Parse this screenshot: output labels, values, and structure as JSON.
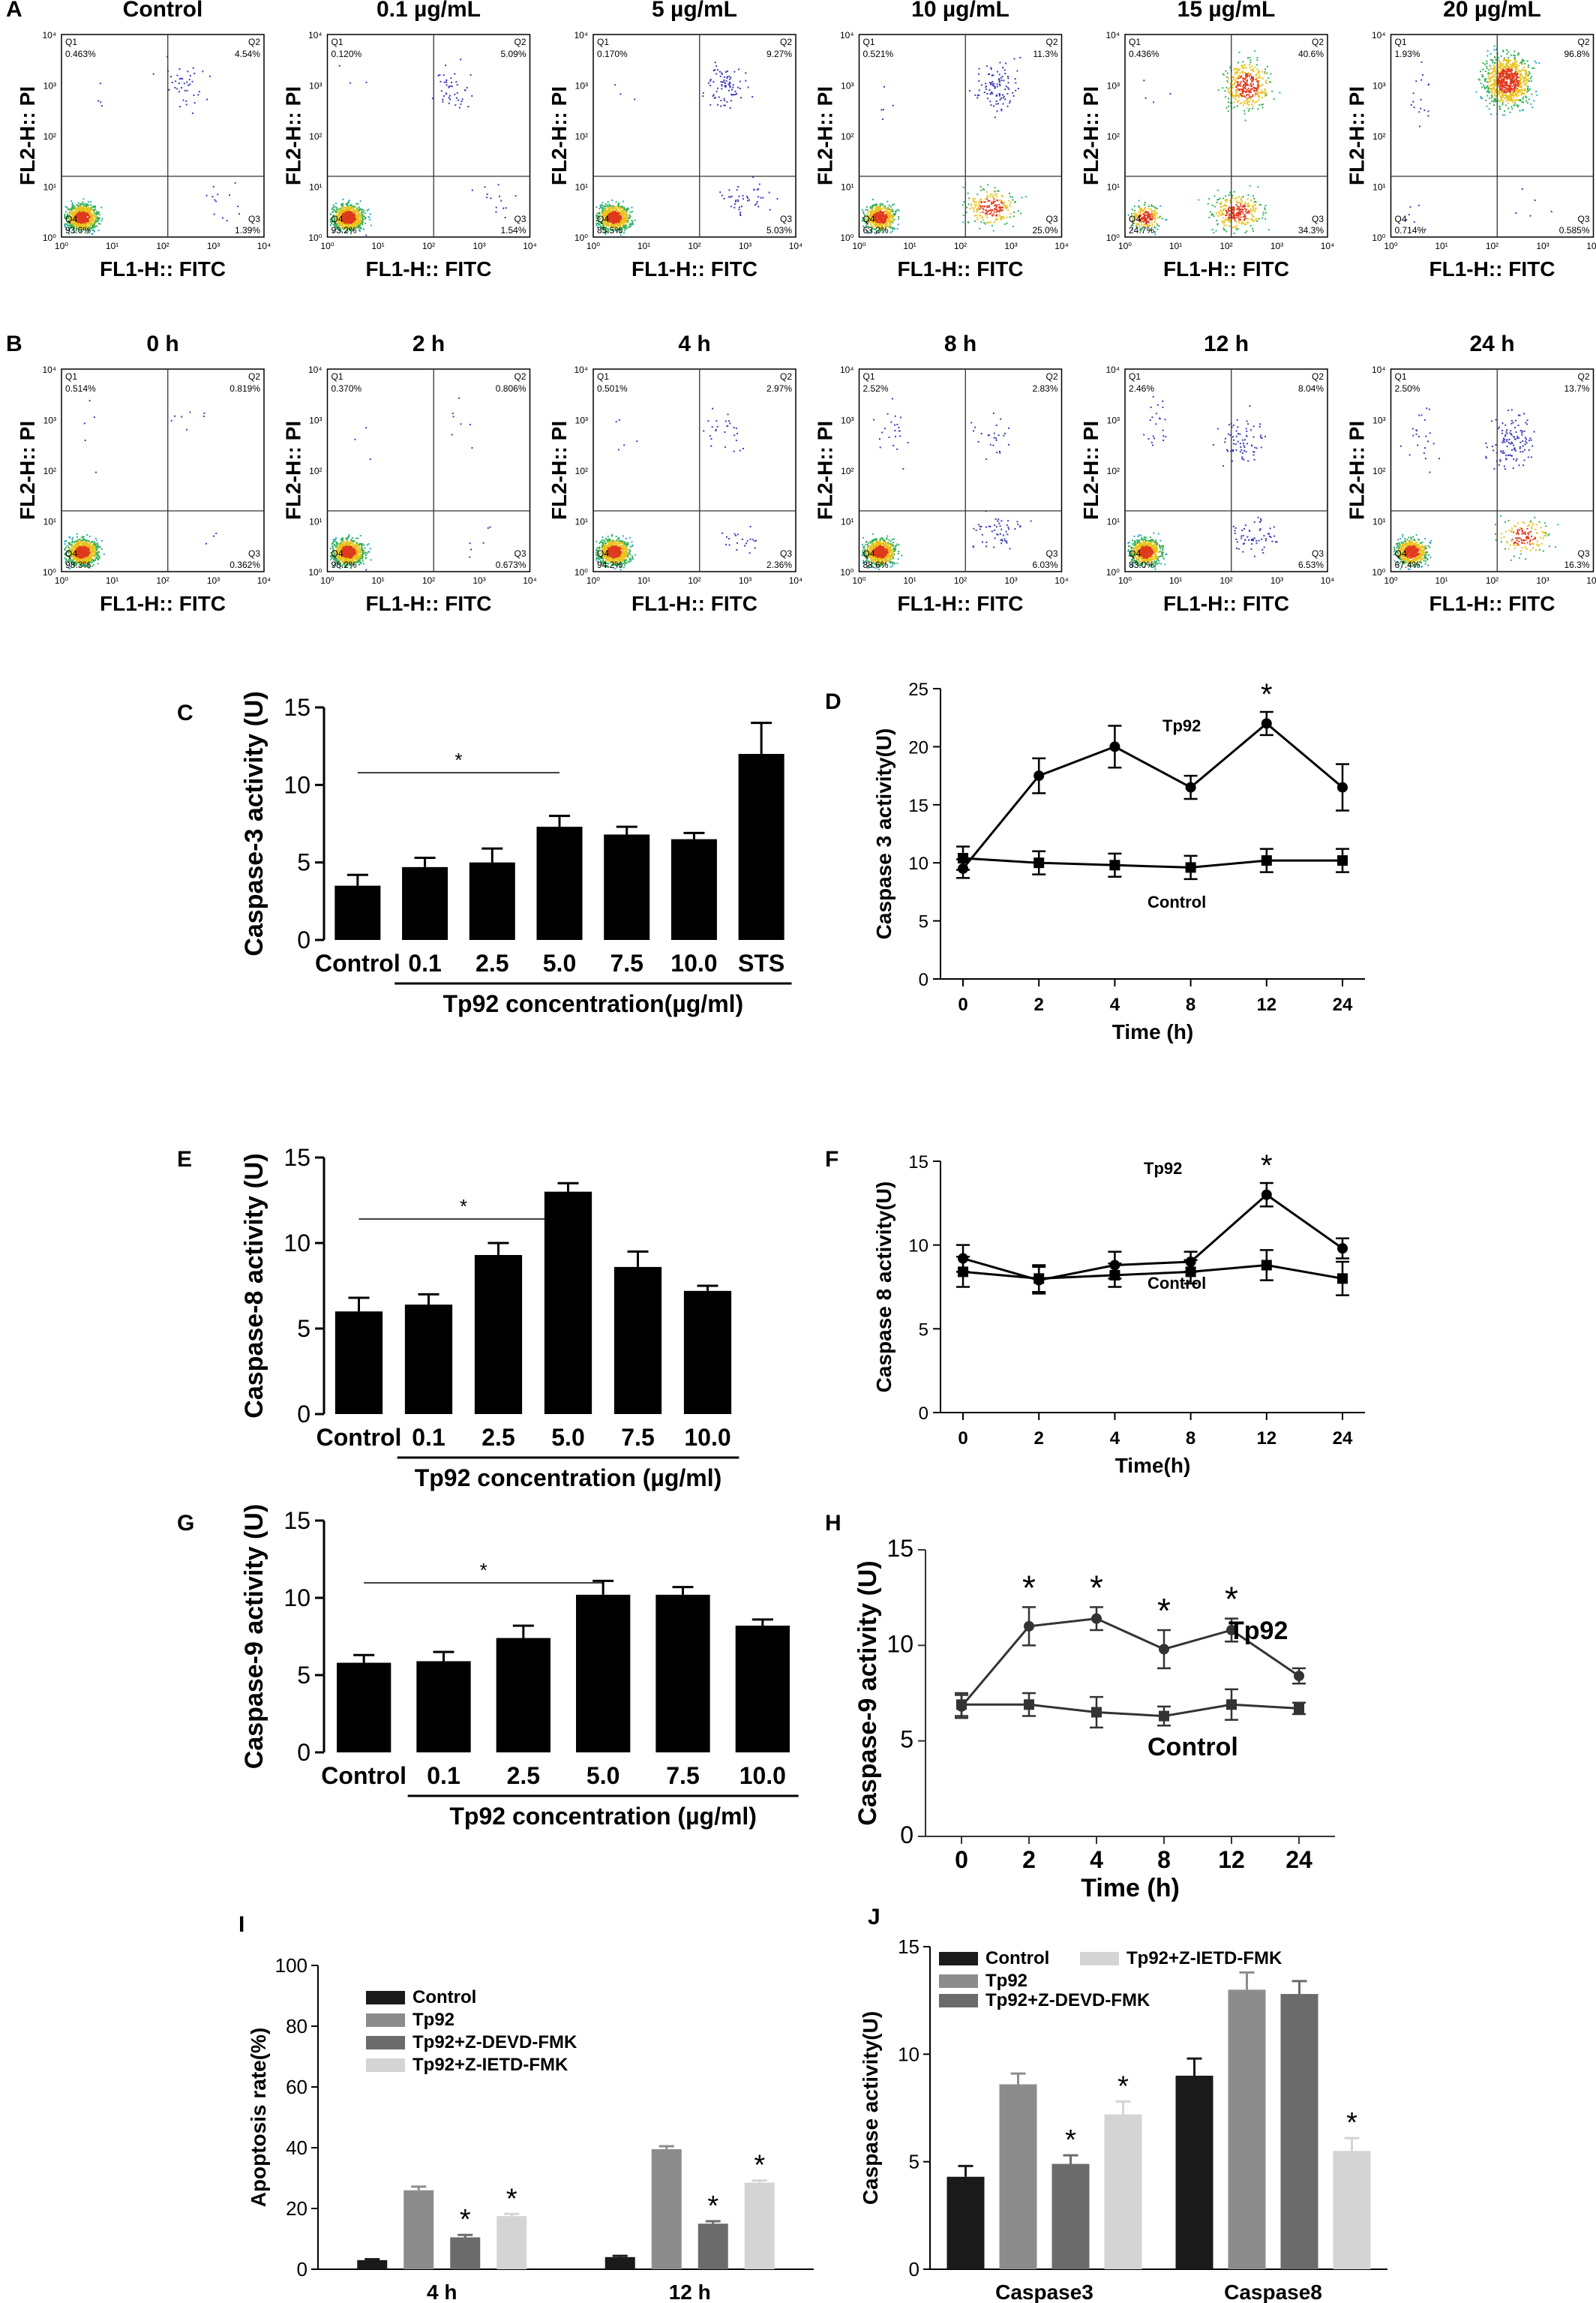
{
  "panel_labels": {
    "A": "A",
    "B": "B",
    "C": "C",
    "D": "D",
    "E": "E",
    "F": "F",
    "G": "G",
    "H": "H",
    "I": "I",
    "J": "J"
  },
  "flow_axes": {
    "x": "FL1-H:: FITC",
    "y": "FL2-H:: PI",
    "ticks": [
      "10⁰",
      "10¹",
      "10²",
      "10³",
      "10⁴"
    ]
  },
  "quadrant_names": [
    "Q1",
    "Q2",
    "Q3",
    "Q4"
  ],
  "chart_data": [
    {
      "panel": "A",
      "type": "scatter",
      "subtype": "flow-cytometry-quadrants",
      "plots": [
        {
          "title": "Control",
          "q1": "0.463%",
          "q2": "4.54%",
          "q3": "1.39%",
          "q4": "93.6%",
          "q2c": [
            2.4,
            3.0
          ],
          "q3c": [
            3.3,
            0.7
          ]
        },
        {
          "title": "0.1 µg/mL",
          "q1": "0.120%",
          "q2": "5.09%",
          "q3": "1.54%",
          "q4": "93.2%",
          "q2c": [
            2.4,
            2.9
          ],
          "q3c": [
            3.3,
            0.7
          ]
        },
        {
          "title": "5 µg/mL",
          "q1": "0.170%",
          "q2": "9.27%",
          "q3": "5.03%",
          "q4": "85.5%",
          "q2c": [
            2.6,
            3.0
          ],
          "q3c": [
            3.0,
            0.8
          ]
        },
        {
          "title": "10 µg/mL",
          "q1": "0.521%",
          "q2": "11.3%",
          "q3": "25.0%",
          "q4": "63.2%",
          "q2c": [
            2.7,
            3.0
          ],
          "q3c": [
            2.6,
            0.6
          ]
        },
        {
          "title": "15 µg/mL",
          "q1": "0.436%",
          "q2": "40.6%",
          "q3": "34.3%",
          "q4": "24.7%",
          "q2c": [
            2.4,
            3.0
          ],
          "q3c": [
            2.2,
            0.5
          ]
        },
        {
          "title": "20 µg/mL",
          "q1": "1.93%",
          "q2": "96.8%",
          "q3": "0.585%",
          "q4": "0.714%",
          "q2c": [
            2.3,
            3.1
          ],
          "q3c": [
            2.6,
            0.6
          ]
        }
      ]
    },
    {
      "panel": "B",
      "type": "scatter",
      "subtype": "flow-cytometry-quadrants",
      "plots": [
        {
          "title": "0 h",
          "q1": "0.514%",
          "q2": "0.819%",
          "q3": "0.362%",
          "q4": "98.3%",
          "q2c": [
            2.5,
            3.2
          ],
          "q3c": [
            3.0,
            0.6
          ]
        },
        {
          "title": "2 h",
          "q1": "0.370%",
          "q2": "0.806%",
          "q3": "0.673%",
          "q4": "98.2%",
          "q2c": [
            2.5,
            3.0
          ],
          "q3c": [
            3.0,
            0.6
          ]
        },
        {
          "title": "4 h",
          "q1": "0.501%",
          "q2": "2.97%",
          "q3": "2.36%",
          "q4": "94.2%",
          "q2c": [
            2.6,
            2.8
          ],
          "q3c": [
            2.9,
            0.7
          ]
        },
        {
          "title": "8 h",
          "q1": "2.52%",
          "q2": "2.83%",
          "q3": "6.03%",
          "q4": "88.6%",
          "q2c": [
            2.6,
            2.7
          ],
          "q3c": [
            2.7,
            0.8
          ]
        },
        {
          "title": "12 h",
          "q1": "2.46%",
          "q2": "8.04%",
          "q3": "6.53%",
          "q4": "83.0%",
          "q2c": [
            2.3,
            2.6
          ],
          "q3c": [
            2.6,
            0.7
          ]
        },
        {
          "title": "24 h",
          "q1": "2.50%",
          "q2": "13.7%",
          "q3": "16.3%",
          "q4": "67.4%",
          "q2c": [
            2.4,
            2.6
          ],
          "q3c": [
            2.6,
            0.7
          ]
        }
      ]
    },
    {
      "panel": "C",
      "type": "bar",
      "ylabel": "Caspase-3 activity (U)",
      "ylim": [
        0,
        15
      ],
      "yticks": [
        0,
        5,
        10,
        15
      ],
      "categories": [
        "Control",
        "0.1",
        "2.5",
        "5.0",
        "7.5",
        "10.0",
        "STS"
      ],
      "values": [
        3.5,
        4.7,
        5.0,
        7.3,
        6.8,
        6.5,
        12.0
      ],
      "errors": [
        0.7,
        0.6,
        0.9,
        0.7,
        0.5,
        0.4,
        2.0
      ],
      "xlabel": "Tp92 concentration(µg/ml)",
      "star": "*",
      "sig_from": 0,
      "sig_to": 3,
      "underline_from": 1,
      "underline_to": 6
    },
    {
      "panel": "D",
      "type": "line",
      "ylabel": "Caspase 3 activity(U)",
      "xlabel": "Time (h)",
      "ylim": [
        0,
        25
      ],
      "yticks": [
        0,
        5,
        10,
        15,
        20,
        25
      ],
      "x": [
        "0",
        "2",
        "4",
        "8",
        "12",
        "24"
      ],
      "series": [
        {
          "name": "Tp92",
          "values": [
            9.5,
            17.5,
            20.0,
            16.5,
            22.0,
            16.5
          ],
          "errors": [
            0.8,
            1.5,
            1.8,
            1.0,
            1.0,
            2.0
          ]
        },
        {
          "name": "Control",
          "values": [
            10.4,
            10.0,
            9.8,
            9.6,
            10.2,
            10.2
          ],
          "errors": [
            1.0,
            1.0,
            1.0,
            1.0,
            1.0,
            1.0
          ]
        }
      ],
      "stars": [
        4
      ]
    },
    {
      "panel": "E",
      "type": "bar",
      "ylabel": "Caspase-8 activity (U)",
      "ylim": [
        0,
        15
      ],
      "yticks": [
        0,
        5,
        10,
        15
      ],
      "categories": [
        "Control",
        "0.1",
        "2.5",
        "5.0",
        "7.5",
        "10.0"
      ],
      "values": [
        6.0,
        6.4,
        9.3,
        13.0,
        8.6,
        7.2
      ],
      "errors": [
        0.8,
        0.6,
        0.7,
        0.5,
        0.9,
        0.3
      ],
      "xlabel": "Tp92 concentration (µg/ml)",
      "star": "*",
      "sig_from": 0,
      "sig_to": 3,
      "underline_from": 1,
      "underline_to": 5
    },
    {
      "panel": "F",
      "type": "line",
      "ylabel": "Caspase 8  activity(U)",
      "xlabel": "Time(h)",
      "ylim": [
        0,
        15
      ],
      "yticks": [
        0,
        5,
        10,
        15
      ],
      "x": [
        "0",
        "2",
        "4",
        "8",
        "12",
        "24"
      ],
      "series": [
        {
          "name": "Tp92",
          "values": [
            9.2,
            7.9,
            8.8,
            9.0,
            13.0,
            9.8
          ],
          "errors": [
            0.8,
            0.8,
            0.8,
            0.6,
            0.7,
            0.6
          ]
        },
        {
          "name": "Control",
          "values": [
            8.4,
            8.0,
            8.2,
            8.4,
            8.8,
            8.0
          ],
          "errors": [
            0.9,
            0.8,
            0.7,
            0.7,
            0.9,
            1.0
          ]
        }
      ],
      "stars": [
        4
      ]
    },
    {
      "panel": "G",
      "type": "bar",
      "ylabel": "Caspase-9 activity (U)",
      "ylim": [
        0,
        15
      ],
      "yticks": [
        0,
        5,
        10,
        15
      ],
      "categories": [
        "Control",
        "0.1",
        "2.5",
        "5.0",
        "7.5",
        "10.0"
      ],
      "values": [
        5.8,
        5.9,
        7.4,
        10.2,
        10.2,
        8.2
      ],
      "errors": [
        0.5,
        0.6,
        0.8,
        0.9,
        0.5,
        0.4
      ],
      "xlabel": "Tp92 concentration (µg/ml)",
      "star": "*",
      "sig_from": 0,
      "sig_to": 3,
      "underline_from": 1,
      "underline_to": 5
    },
    {
      "panel": "H",
      "type": "line",
      "ylabel": "Caspase-9 activity (U)",
      "xlabel": "Time (h)",
      "ylim": [
        0,
        15
      ],
      "yticks": [
        0,
        5,
        10,
        15
      ],
      "x": [
        "0",
        "2",
        "4",
        "8",
        "12",
        "24"
      ],
      "series": [
        {
          "name": "Tp92",
          "values": [
            6.8,
            11.0,
            11.4,
            9.8,
            10.8,
            8.4
          ],
          "errors": [
            0.6,
            1.0,
            0.6,
            1.0,
            0.6,
            0.4
          ]
        },
        {
          "name": "Control",
          "values": [
            6.9,
            6.9,
            6.5,
            6.3,
            6.9,
            6.7
          ],
          "errors": [
            0.6,
            0.6,
            0.8,
            0.5,
            0.8,
            0.3
          ]
        }
      ],
      "stars": [
        1,
        2,
        3,
        4
      ]
    },
    {
      "panel": "I",
      "type": "bar",
      "ylabel": "Apoptosis rate(%)",
      "ylim": [
        0,
        100
      ],
      "yticks": [
        0,
        20,
        40,
        60,
        80,
        100
      ],
      "categories": [
        "4 h",
        "12 h"
      ],
      "series": [
        {
          "name": "Control",
          "color": "#1a1a1a",
          "values": [
            3,
            4
          ],
          "errors": [
            0.3,
            0.4
          ],
          "stars": [
            false,
            false
          ]
        },
        {
          "name": "Tp92",
          "color": "#8c8c8c",
          "values": [
            26,
            39.5
          ],
          "errors": [
            1.2,
            1.0
          ],
          "stars": [
            false,
            false
          ]
        },
        {
          "name": "Tp92+Z-DEVD-FMK",
          "color": "#6b6b6b",
          "values": [
            10.5,
            15
          ],
          "errors": [
            0.8,
            0.8
          ],
          "stars": [
            true,
            true
          ]
        },
        {
          "name": "Tp92+Z-IETD-FMK",
          "color": "#d4d4d4",
          "values": [
            17.5,
            28.5
          ],
          "errors": [
            0.7,
            0.7
          ],
          "stars": [
            true,
            true
          ]
        }
      ]
    },
    {
      "panel": "J",
      "type": "bar",
      "ylabel": "Caspase  activity(U)",
      "ylim": [
        0,
        15
      ],
      "yticks": [
        0,
        5,
        10,
        15
      ],
      "categories": [
        "Caspase3",
        "Caspase8"
      ],
      "series": [
        {
          "name": "Control",
          "color": "#1a1a1a",
          "values": [
            4.3,
            9.0
          ],
          "errors": [
            0.5,
            0.8
          ],
          "stars": [
            false,
            false
          ]
        },
        {
          "name": "Tp92",
          "color": "#8c8c8c",
          "values": [
            8.6,
            13.0
          ],
          "errors": [
            0.5,
            0.8
          ],
          "stars": [
            false,
            false
          ]
        },
        {
          "name": "Tp92+Z-DEVD-FMK",
          "color": "#6b6b6b",
          "values": [
            4.9,
            12.8
          ],
          "errors": [
            0.4,
            0.6
          ],
          "stars": [
            true,
            false
          ]
        },
        {
          "name": "Tp92+Z-IETD-FMK",
          "color": "#d4d4d4",
          "values": [
            7.2,
            5.5
          ],
          "errors": [
            0.6,
            0.6
          ],
          "stars": [
            true,
            true
          ]
        }
      ]
    }
  ]
}
